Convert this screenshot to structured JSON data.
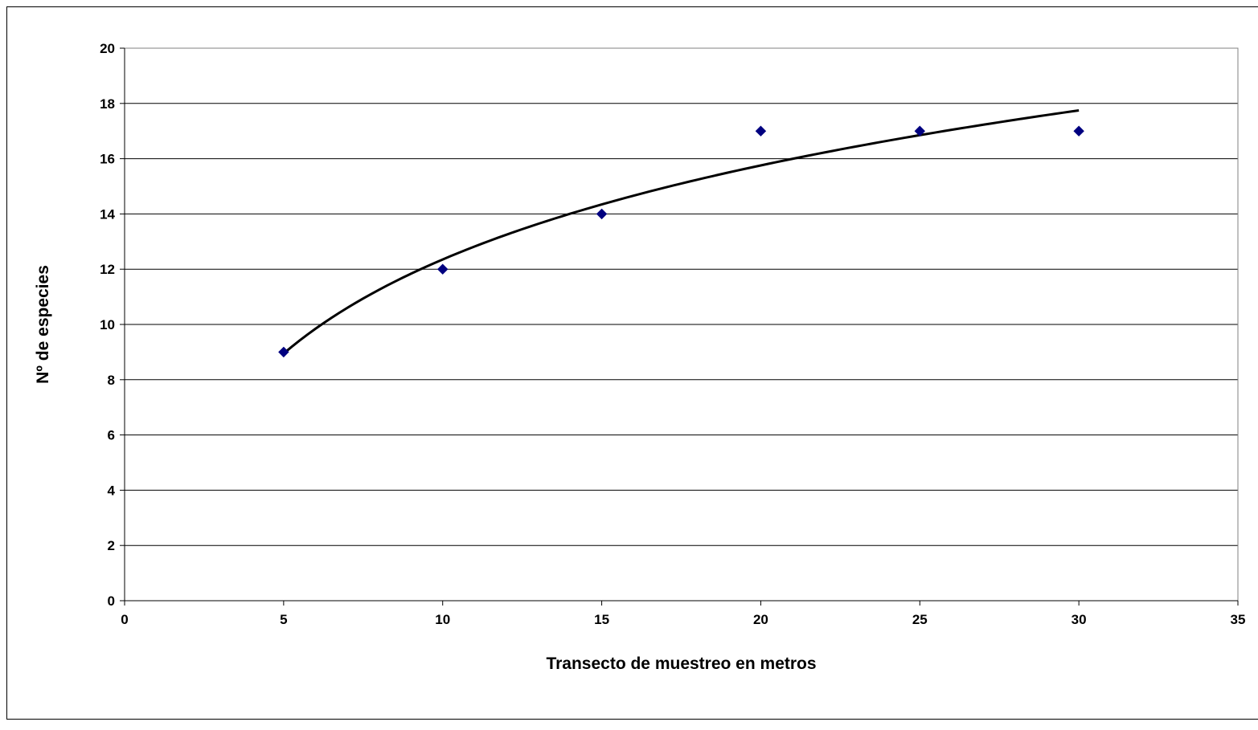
{
  "chart_data": {
    "type": "scatter",
    "title": "",
    "xlabel": "Transecto de muestreo en metros",
    "ylabel": "Nº de especies",
    "xlim": [
      0,
      35
    ],
    "ylim": [
      0,
      20
    ],
    "x_ticks": [
      0,
      5,
      10,
      15,
      20,
      25,
      30,
      35
    ],
    "y_ticks": [
      0,
      2,
      4,
      6,
      8,
      10,
      12,
      14,
      16,
      18,
      20
    ],
    "grid": "horizontal",
    "legend": "none",
    "series": [
      {
        "x": [
          5,
          10,
          15,
          20,
          25,
          30
        ],
        "y": [
          9,
          12,
          14,
          17,
          17,
          17
        ],
        "marker": "diamond",
        "color": "#000080"
      }
    ],
    "trendline": {
      "type": "logarithmic",
      "x_range": [
        5,
        30
      ],
      "color": "#000000"
    }
  }
}
